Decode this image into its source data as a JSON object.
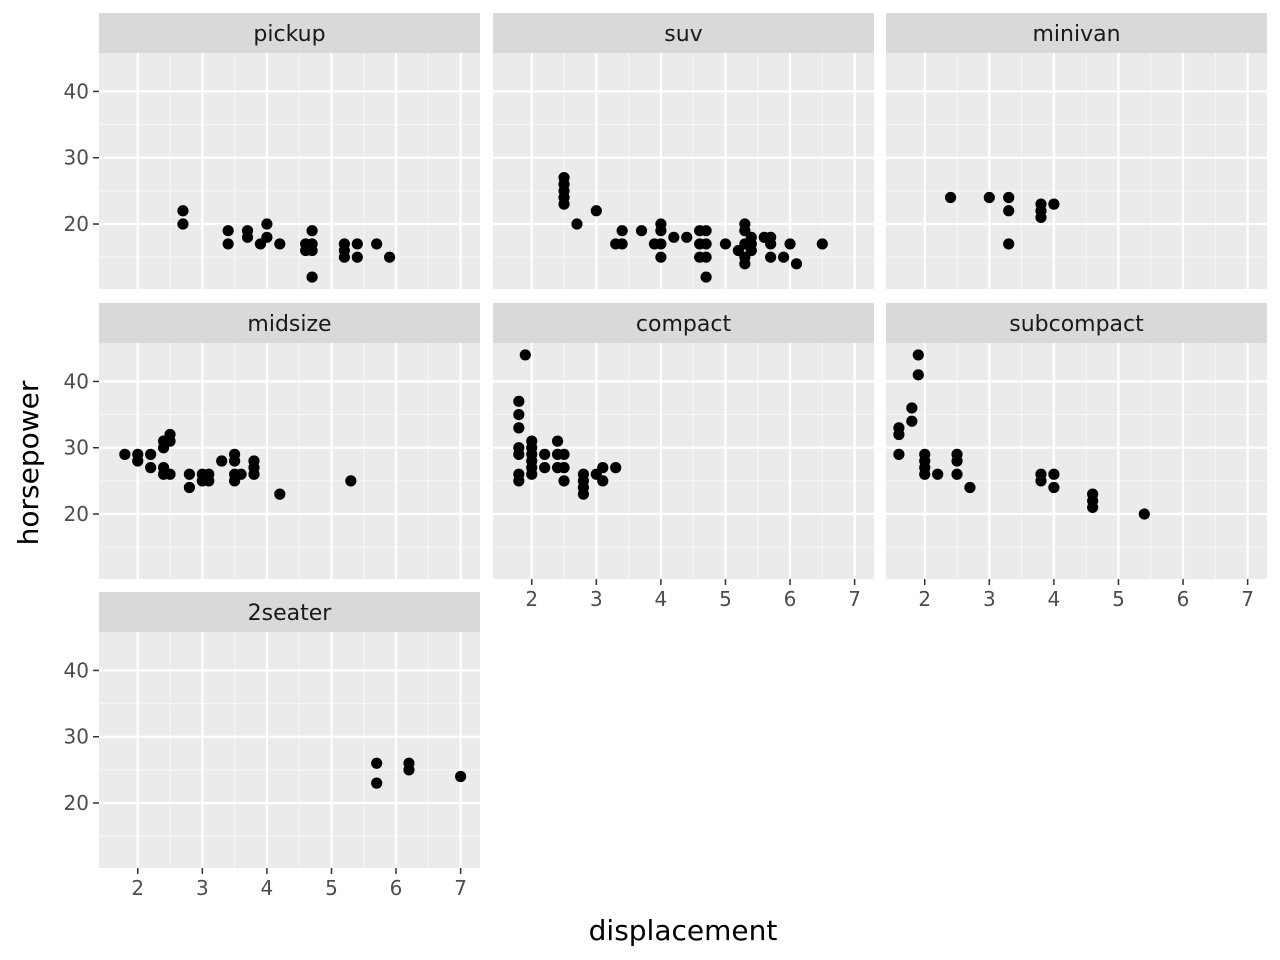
{
  "chart_data": {
    "type": "scatter",
    "facet_by": "class",
    "xlabel": "displacement",
    "ylabel": "horsepower",
    "xlim": [
      1.4,
      7.3
    ],
    "ylim": [
      10.2,
      45.8
    ],
    "x_ticks": [
      2,
      3,
      4,
      5,
      6,
      7
    ],
    "y_ticks": [
      20,
      30,
      40
    ],
    "grid": true,
    "colors": {
      "panel_bg": "#ebebeb",
      "strip_bg": "#d9d9d9",
      "grid_major": "#ffffff",
      "point": "#000000"
    },
    "facets": [
      {
        "name": "pickup",
        "points": [
          [
            2.7,
            22
          ],
          [
            2.7,
            20
          ],
          [
            3.4,
            19
          ],
          [
            3.4,
            17
          ],
          [
            3.7,
            19
          ],
          [
            3.7,
            18
          ],
          [
            3.9,
            17
          ],
          [
            4.0,
            20
          ],
          [
            4.0,
            18
          ],
          [
            4.2,
            17
          ],
          [
            4.7,
            17
          ],
          [
            4.7,
            16
          ],
          [
            4.7,
            12
          ],
          [
            4.7,
            19
          ],
          [
            4.6,
            17
          ],
          [
            4.6,
            16
          ],
          [
            5.2,
            17
          ],
          [
            5.2,
            16
          ],
          [
            5.2,
            15
          ],
          [
            5.4,
            17
          ],
          [
            5.4,
            15
          ],
          [
            5.7,
            17
          ],
          [
            5.9,
            15
          ]
        ]
      },
      {
        "name": "suv",
        "points": [
          [
            2.5,
            27
          ],
          [
            2.5,
            26
          ],
          [
            2.5,
            25
          ],
          [
            2.5,
            24
          ],
          [
            2.5,
            23
          ],
          [
            2.7,
            20
          ],
          [
            3.0,
            22
          ],
          [
            3.3,
            17
          ],
          [
            3.4,
            19
          ],
          [
            3.4,
            17
          ],
          [
            3.7,
            19
          ],
          [
            3.9,
            17
          ],
          [
            4.0,
            20
          ],
          [
            4.0,
            19
          ],
          [
            4.0,
            17
          ],
          [
            4.0,
            15
          ],
          [
            4.2,
            18
          ],
          [
            4.4,
            18
          ],
          [
            4.6,
            19
          ],
          [
            4.6,
            17
          ],
          [
            4.6,
            15
          ],
          [
            4.7,
            19
          ],
          [
            4.7,
            17
          ],
          [
            4.7,
            15
          ],
          [
            4.7,
            12
          ],
          [
            5.0,
            17
          ],
          [
            5.2,
            16
          ],
          [
            5.3,
            20
          ],
          [
            5.3,
            19
          ],
          [
            5.3,
            17
          ],
          [
            5.3,
            15
          ],
          [
            5.3,
            14
          ],
          [
            5.4,
            18
          ],
          [
            5.4,
            17
          ],
          [
            5.4,
            16
          ],
          [
            5.6,
            18
          ],
          [
            5.7,
            18
          ],
          [
            5.7,
            17
          ],
          [
            5.7,
            15
          ],
          [
            5.9,
            15
          ],
          [
            6.0,
            17
          ],
          [
            6.1,
            14
          ],
          [
            6.5,
            17
          ]
        ]
      },
      {
        "name": "minivan",
        "points": [
          [
            2.4,
            24
          ],
          [
            3.0,
            24
          ],
          [
            3.3,
            24
          ],
          [
            3.3,
            22
          ],
          [
            3.3,
            17
          ],
          [
            3.8,
            23
          ],
          [
            3.8,
            22
          ],
          [
            3.8,
            21
          ],
          [
            4.0,
            23
          ]
        ]
      },
      {
        "name": "midsize",
        "points": [
          [
            1.8,
            29
          ],
          [
            2.0,
            29
          ],
          [
            2.0,
            28
          ],
          [
            2.2,
            29
          ],
          [
            2.2,
            27
          ],
          [
            2.4,
            31
          ],
          [
            2.4,
            30
          ],
          [
            2.4,
            27
          ],
          [
            2.4,
            26
          ],
          [
            2.5,
            32
          ],
          [
            2.5,
            31
          ],
          [
            2.5,
            26
          ],
          [
            2.8,
            26
          ],
          [
            2.8,
            24
          ],
          [
            3.0,
            26
          ],
          [
            3.0,
            25
          ],
          [
            3.1,
            26
          ],
          [
            3.1,
            25
          ],
          [
            3.3,
            28
          ],
          [
            3.5,
            29
          ],
          [
            3.5,
            28
          ],
          [
            3.5,
            26
          ],
          [
            3.5,
            25
          ],
          [
            3.6,
            26
          ],
          [
            3.8,
            28
          ],
          [
            3.8,
            27
          ],
          [
            3.8,
            26
          ],
          [
            4.2,
            23
          ],
          [
            5.3,
            25
          ]
        ]
      },
      {
        "name": "compact",
        "points": [
          [
            1.8,
            37
          ],
          [
            1.8,
            35
          ],
          [
            1.8,
            33
          ],
          [
            1.8,
            30
          ],
          [
            1.8,
            29
          ],
          [
            1.8,
            26
          ],
          [
            1.8,
            25
          ],
          [
            1.9,
            44
          ],
          [
            2.0,
            31
          ],
          [
            2.0,
            30
          ],
          [
            2.0,
            29
          ],
          [
            2.0,
            28
          ],
          [
            2.0,
            27
          ],
          [
            2.0,
            26
          ],
          [
            2.2,
            29
          ],
          [
            2.2,
            27
          ],
          [
            2.4,
            31
          ],
          [
            2.4,
            29
          ],
          [
            2.4,
            27
          ],
          [
            2.5,
            29
          ],
          [
            2.5,
            27
          ],
          [
            2.5,
            25
          ],
          [
            2.8,
            26
          ],
          [
            2.8,
            25
          ],
          [
            2.8,
            24
          ],
          [
            2.8,
            23
          ],
          [
            3.0,
            26
          ],
          [
            3.1,
            27
          ],
          [
            3.1,
            25
          ],
          [
            3.3,
            27
          ]
        ]
      },
      {
        "name": "subcompact",
        "points": [
          [
            1.6,
            33
          ],
          [
            1.6,
            32
          ],
          [
            1.6,
            29
          ],
          [
            1.8,
            36
          ],
          [
            1.8,
            34
          ],
          [
            1.9,
            44
          ],
          [
            1.9,
            41
          ],
          [
            2.0,
            29
          ],
          [
            2.0,
            28
          ],
          [
            2.0,
            27
          ],
          [
            2.0,
            26
          ],
          [
            2.2,
            26
          ],
          [
            2.5,
            29
          ],
          [
            2.5,
            28
          ],
          [
            2.5,
            26
          ],
          [
            2.7,
            24
          ],
          [
            3.8,
            26
          ],
          [
            3.8,
            25
          ],
          [
            4.0,
            26
          ],
          [
            4.0,
            24
          ],
          [
            4.6,
            23
          ],
          [
            4.6,
            22
          ],
          [
            4.6,
            21
          ],
          [
            5.4,
            20
          ]
        ]
      },
      {
        "name": "2seater",
        "points": [
          [
            5.7,
            26
          ],
          [
            5.7,
            23
          ],
          [
            6.2,
            26
          ],
          [
            6.2,
            25
          ],
          [
            7.0,
            24
          ]
        ]
      }
    ]
  }
}
